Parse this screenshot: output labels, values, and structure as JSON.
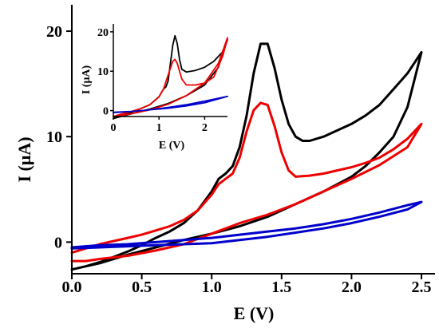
{
  "chart_data": [
    {
      "type": "line",
      "title": "",
      "xlabel": "E (V)",
      "ylabel": "I (μA)",
      "xlim": [
        0,
        2.5
      ],
      "ylim": [
        -3,
        22.5
      ],
      "x_ticks": [
        "0.0",
        "0.5",
        "1.0",
        "1.5",
        "2.0",
        "2.5"
      ],
      "y_ticks": [
        "0",
        "10",
        "20"
      ],
      "grid": false,
      "legend": "none",
      "series": [
        {
          "color": "#000000",
          "x": [
            0.0,
            0.1,
            0.2,
            0.3,
            0.4,
            0.5,
            0.6,
            0.7,
            0.8,
            0.9,
            1.0,
            1.05,
            1.1,
            1.15,
            1.2,
            1.25,
            1.3,
            1.35,
            1.4,
            1.45,
            1.5,
            1.55,
            1.6,
            1.65,
            1.7,
            1.8,
            1.9,
            2.0,
            2.1,
            2.2,
            2.3,
            2.4,
            2.5,
            2.4,
            2.3,
            2.2,
            2.1,
            2.0,
            1.8,
            1.6,
            1.4,
            1.2,
            1.0,
            0.8,
            0.6,
            0.4,
            0.2,
            0.1,
            0.0
          ],
          "y": [
            -2.6,
            -2.3,
            -1.9,
            -1.4,
            -0.9,
            -0.3,
            0.4,
            1.0,
            1.8,
            3.0,
            4.8,
            6.0,
            6.5,
            7.2,
            9.0,
            12.0,
            16.0,
            18.8,
            18.8,
            16.5,
            13.5,
            11.2,
            10.0,
            9.6,
            9.6,
            10.0,
            10.6,
            11.2,
            12.0,
            13.0,
            14.5,
            16.0,
            18.0,
            12.8,
            10.0,
            8.5,
            7.2,
            6.2,
            4.8,
            3.6,
            2.4,
            1.5,
            0.8,
            0.2,
            -0.5,
            -1.2,
            -2.0,
            -2.3,
            -2.6
          ]
        },
        {
          "color": "#ee0000",
          "x": [
            0.0,
            0.1,
            0.2,
            0.3,
            0.4,
            0.5,
            0.6,
            0.7,
            0.8,
            0.9,
            1.0,
            1.05,
            1.1,
            1.15,
            1.2,
            1.25,
            1.3,
            1.35,
            1.4,
            1.45,
            1.5,
            1.55,
            1.6,
            1.7,
            1.8,
            1.9,
            2.0,
            2.1,
            2.2,
            2.3,
            2.4,
            2.5,
            2.4,
            2.2,
            2.0,
            1.8,
            1.6,
            1.4,
            1.2,
            1.0,
            0.8,
            0.6,
            0.4,
            0.2,
            0.1,
            0.0
          ],
          "y": [
            -1.0,
            -0.6,
            -0.2,
            0.1,
            0.4,
            0.7,
            1.1,
            1.5,
            2.1,
            3.0,
            4.5,
            5.5,
            6.0,
            6.5,
            8.0,
            10.5,
            12.5,
            13.2,
            13.0,
            11.0,
            8.5,
            6.8,
            6.2,
            6.3,
            6.5,
            6.8,
            7.1,
            7.5,
            8.0,
            8.8,
            9.8,
            11.2,
            9.0,
            7.3,
            6.0,
            4.8,
            3.6,
            2.6,
            1.8,
            0.8,
            -0.2,
            -0.8,
            -1.3,
            -1.6,
            -1.8,
            -1.8
          ]
        },
        {
          "color": "#0000cc",
          "x": [
            0.0,
            0.2,
            0.4,
            0.6,
            0.8,
            1.0,
            1.2,
            1.4,
            1.6,
            1.8,
            2.0,
            2.2,
            2.4,
            2.5,
            2.4,
            2.2,
            2.0,
            1.8,
            1.6,
            1.4,
            1.2,
            1.0,
            0.8,
            0.6,
            0.4,
            0.2,
            0.0
          ],
          "y": [
            -0.5,
            -0.3,
            -0.2,
            0.0,
            0.2,
            0.4,
            0.7,
            1.0,
            1.3,
            1.7,
            2.2,
            2.8,
            3.5,
            3.8,
            3.1,
            2.4,
            1.8,
            1.3,
            0.9,
            0.5,
            0.2,
            -0.1,
            -0.2,
            -0.3,
            -0.4,
            -0.5,
            -0.6
          ]
        }
      ]
    },
    {
      "type": "line",
      "title": "",
      "xlabel": "E (V)",
      "ylabel": "I (μA)",
      "xlim": [
        0,
        2.5
      ],
      "ylim": [
        -1.5,
        22
      ],
      "x_ticks": [
        "0",
        "1",
        "2"
      ],
      "y_ticks": [
        "0",
        "10",
        "20"
      ],
      "grid": false,
      "legend": "none",
      "series": [
        {
          "color": "#000000",
          "x": [
            0.0,
            0.2,
            0.4,
            0.6,
            0.8,
            1.0,
            1.1,
            1.15,
            1.2,
            1.3,
            1.35,
            1.4,
            1.45,
            1.5,
            1.6,
            1.8,
            2.0,
            2.2,
            2.4,
            2.5,
            2.3,
            2.0,
            1.6,
            1.2,
            0.8,
            0.4,
            0.0
          ],
          "y": [
            -2.0,
            -1.2,
            -0.4,
            0.5,
            1.5,
            3.5,
            5.5,
            6.0,
            7.5,
            16.5,
            19.0,
            17.0,
            13.0,
            10.5,
            9.8,
            10.2,
            11.0,
            12.5,
            15.0,
            18.0,
            11.0,
            6.5,
            3.8,
            1.8,
            0.4,
            -0.8,
            -2.0
          ]
        },
        {
          "color": "#ee0000",
          "x": [
            0.0,
            0.2,
            0.4,
            0.6,
            0.8,
            1.0,
            1.1,
            1.2,
            1.3,
            1.35,
            1.4,
            1.5,
            1.6,
            1.8,
            2.0,
            2.2,
            2.4,
            2.5,
            2.3,
            2.0,
            1.6,
            1.2,
            0.8,
            0.4,
            0.0
          ],
          "y": [
            -1.5,
            -0.8,
            -0.2,
            0.5,
            1.5,
            3.5,
            5.5,
            9.0,
            12.5,
            13.0,
            12.0,
            8.0,
            6.5,
            6.5,
            7.0,
            8.5,
            14.0,
            18.5,
            12.0,
            7.0,
            3.8,
            1.6,
            0.2,
            -0.8,
            -1.5
          ]
        },
        {
          "color": "#0000cc",
          "x": [
            0.0,
            0.4,
            0.8,
            1.2,
            1.6,
            2.0,
            2.5,
            2.0,
            1.6,
            1.2,
            0.8,
            0.4,
            0.0
          ],
          "y": [
            -0.4,
            -0.2,
            0.2,
            0.6,
            1.2,
            2.0,
            3.6,
            2.4,
            1.5,
            0.8,
            0.2,
            -0.2,
            -0.5
          ]
        }
      ]
    }
  ]
}
